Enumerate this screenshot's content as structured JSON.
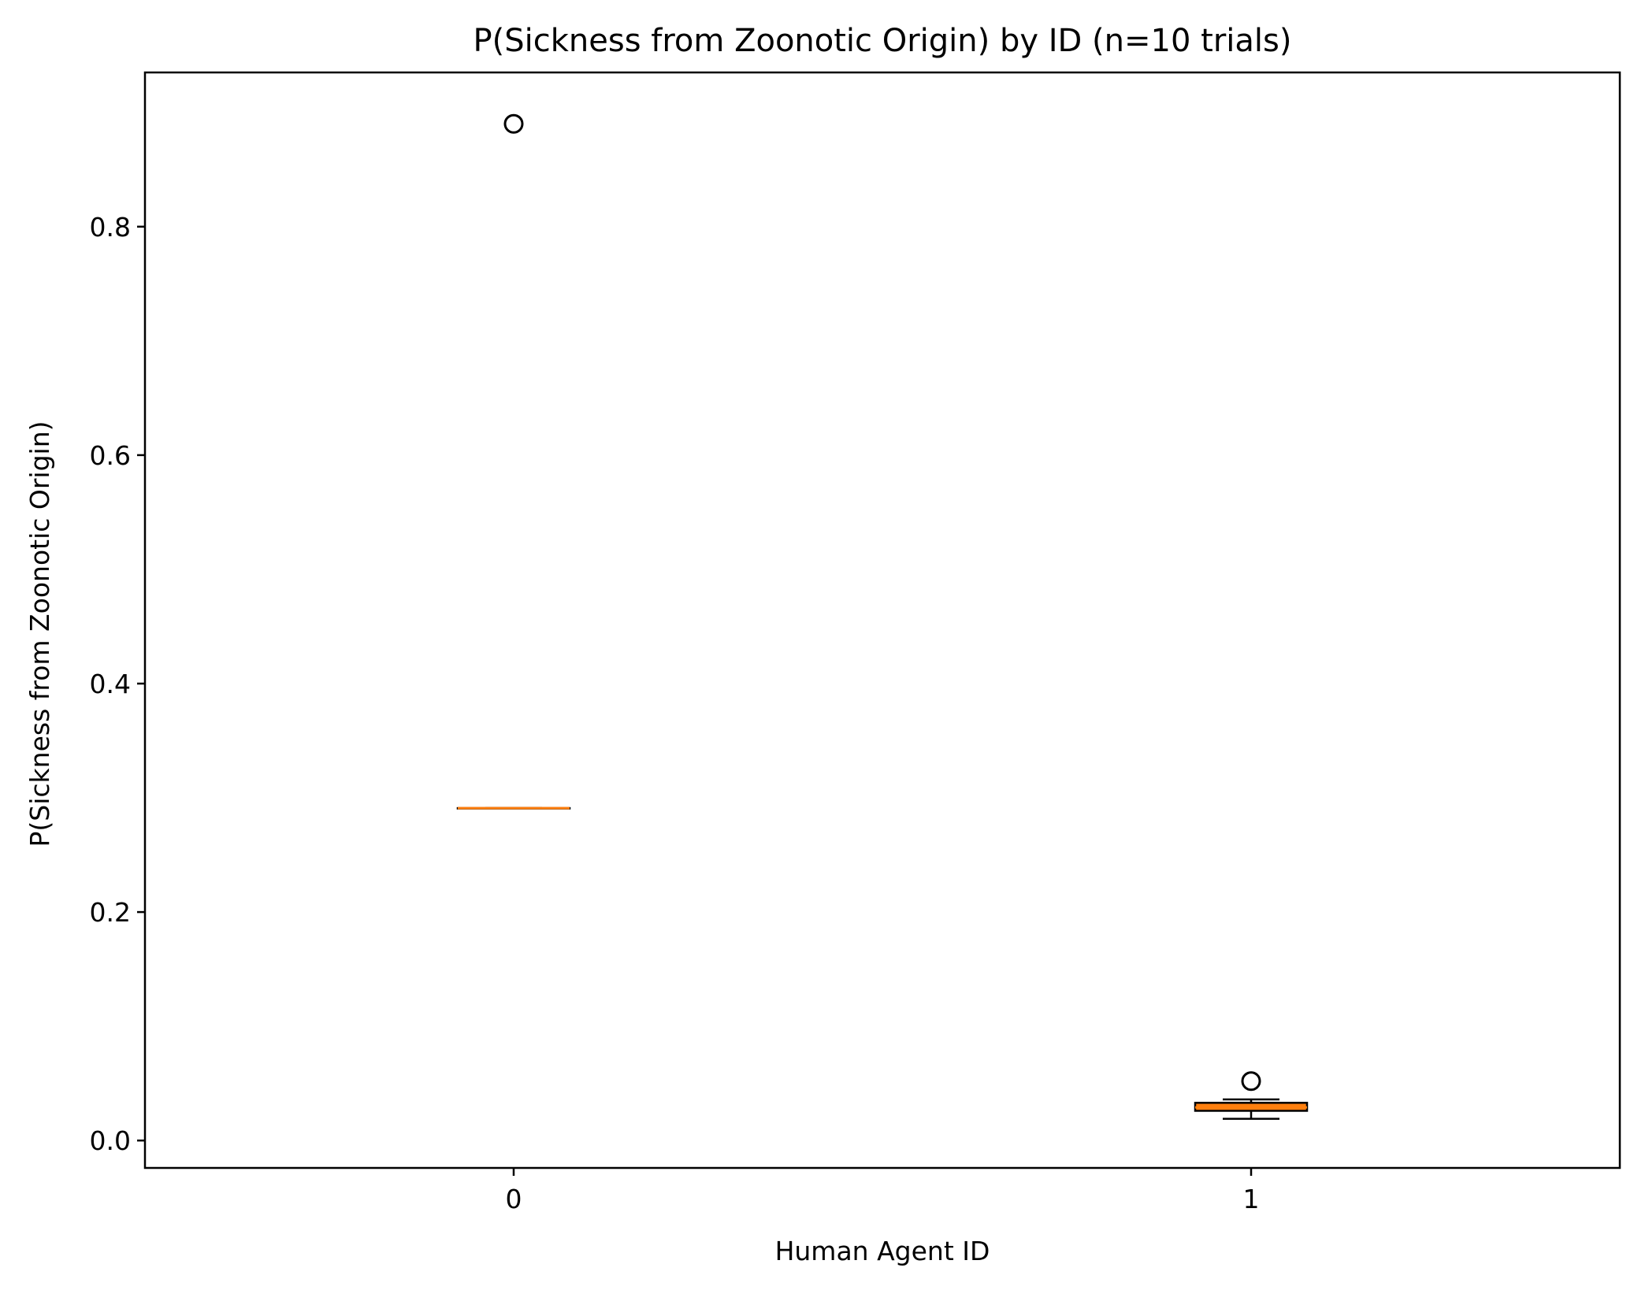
{
  "chart_data": {
    "type": "boxplot",
    "title": "P(Sickness from Zoonotic Origin) by ID (n=10 trials)",
    "xlabel": "Human Agent ID",
    "ylabel": "P(Sickness from Zoonotic Origin)",
    "categories": [
      "0",
      "1"
    ],
    "ylim": [
      -0.024,
      0.935
    ],
    "yticks": [
      0.0,
      0.2,
      0.4,
      0.6,
      0.8
    ],
    "ytick_labels": [
      "0.0",
      "0.2",
      "0.4",
      "0.6",
      "0.8"
    ],
    "grid": false,
    "legend": "none",
    "boxes": [
      {
        "category": "0",
        "whisker_low": 0.291,
        "q1": 0.291,
        "median": 0.291,
        "q3": 0.291,
        "whisker_high": 0.291,
        "outliers": [
          0.89
        ]
      },
      {
        "category": "1",
        "whisker_low": 0.019,
        "q1": 0.026,
        "median": 0.029,
        "q3": 0.033,
        "whisker_high": 0.036,
        "outliers": [
          0.052
        ]
      }
    ],
    "colors": {
      "box_fill": "#ff7f0e",
      "median": "#ff7f0e",
      "edge": "#000000"
    }
  }
}
